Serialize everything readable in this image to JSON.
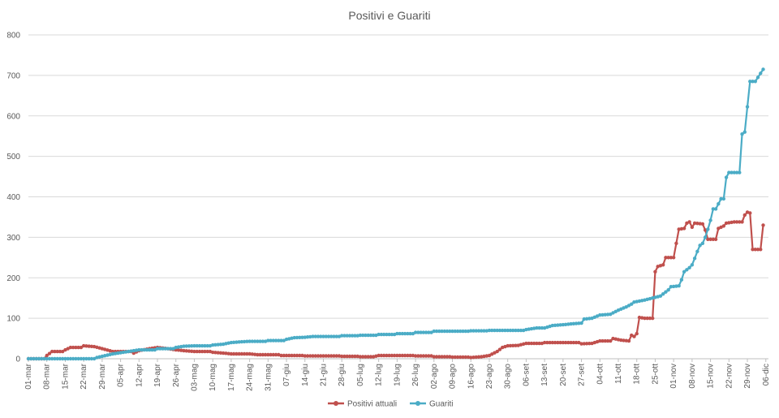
{
  "chart_data": {
    "type": "line",
    "title": "Positivi e Guariti",
    "xlabel": "",
    "ylabel": "",
    "ylim": [
      0,
      800
    ],
    "yticks": [
      0,
      100,
      200,
      300,
      400,
      500,
      600,
      700,
      800
    ],
    "grid": true,
    "legend_position": "bottom",
    "x_start": "01-mar",
    "x_end": "07-dic",
    "xtick_labels": [
      "01-mar",
      "08-mar",
      "15-mar",
      "22-mar",
      "29-mar",
      "05-apr",
      "12-apr",
      "19-apr",
      "26-apr",
      "03-mag",
      "10-mag",
      "17-mag",
      "24-mag",
      "31-mag",
      "07-giu",
      "14-giu",
      "21-giu",
      "28-giu",
      "05-lug",
      "12-lug",
      "19-lug",
      "26-lug",
      "02-ago",
      "09-ago",
      "16-ago",
      "23-ago",
      "30-ago",
      "06-set",
      "13-set",
      "20-set",
      "27-set",
      "04-ott",
      "11-ott",
      "18-ott",
      "25-ott",
      "01-nov",
      "08-nov",
      "15-nov",
      "22-nov",
      "29-nov",
      "06-dic"
    ],
    "series": [
      {
        "name": "Positivi attuali",
        "color": "#c0504d",
        "points": [
          [
            "01-mar",
            0
          ],
          [
            "08-mar",
            8
          ],
          [
            "10-mar",
            18
          ],
          [
            "15-mar",
            22
          ],
          [
            "17-mar",
            28
          ],
          [
            "22-mar",
            32
          ],
          [
            "26-mar",
            30
          ],
          [
            "29-mar",
            25
          ],
          [
            "02-apr",
            18
          ],
          [
            "05-apr",
            18
          ],
          [
            "10-apr",
            14
          ],
          [
            "12-apr",
            20
          ],
          [
            "16-apr",
            25
          ],
          [
            "19-apr",
            28
          ],
          [
            "23-apr",
            25
          ],
          [
            "26-apr",
            22
          ],
          [
            "29-apr",
            20
          ],
          [
            "03-mag",
            18
          ],
          [
            "10-mag",
            16
          ],
          [
            "14-mag",
            14
          ],
          [
            "17-mag",
            12
          ],
          [
            "24-mag",
            12
          ],
          [
            "27-mag",
            10
          ],
          [
            "31-mag",
            10
          ],
          [
            "05-giu",
            8
          ],
          [
            "07-giu",
            8
          ],
          [
            "14-giu",
            7
          ],
          [
            "21-giu",
            7
          ],
          [
            "28-giu",
            6
          ],
          [
            "05-lug",
            5
          ],
          [
            "10-lug",
            5
          ],
          [
            "12-lug",
            8
          ],
          [
            "19-lug",
            8
          ],
          [
            "26-lug",
            7
          ],
          [
            "02-ago",
            5
          ],
          [
            "09-ago",
            4
          ],
          [
            "16-ago",
            3
          ],
          [
            "20-ago",
            5
          ],
          [
            "23-ago",
            8
          ],
          [
            "26-ago",
            18
          ],
          [
            "28-ago",
            28
          ],
          [
            "30-ago",
            32
          ],
          [
            "03-set",
            33
          ],
          [
            "06-set",
            38
          ],
          [
            "13-set",
            40
          ],
          [
            "20-set",
            40
          ],
          [
            "27-set",
            37
          ],
          [
            "01-ott",
            38
          ],
          [
            "04-ott",
            44
          ],
          [
            "08-ott",
            44
          ],
          [
            "09-ott",
            50
          ],
          [
            "12-ott",
            46
          ],
          [
            "15-ott",
            44
          ],
          [
            "16-ott",
            58
          ],
          [
            "17-ott",
            55
          ],
          [
            "18-ott",
            62
          ],
          [
            "19-ott",
            102
          ],
          [
            "21-ott",
            100
          ],
          [
            "24-ott",
            100
          ],
          [
            "25-ott",
            215
          ],
          [
            "26-ott",
            228
          ],
          [
            "28-ott",
            232
          ],
          [
            "29-ott",
            250
          ],
          [
            "01-nov",
            250
          ],
          [
            "02-nov",
            285
          ],
          [
            "03-nov",
            320
          ],
          [
            "05-nov",
            322
          ],
          [
            "06-nov",
            335
          ],
          [
            "07-nov",
            338
          ],
          [
            "08-nov",
            325
          ],
          [
            "09-nov",
            335
          ],
          [
            "12-nov",
            333
          ],
          [
            "13-nov",
            318
          ],
          [
            "14-nov",
            295
          ],
          [
            "17-nov",
            295
          ],
          [
            "18-nov",
            322
          ],
          [
            "20-nov",
            328
          ],
          [
            "21-nov",
            335
          ],
          [
            "24-nov",
            338
          ],
          [
            "27-nov",
            338
          ],
          [
            "28-nov",
            355
          ],
          [
            "29-nov",
            362
          ],
          [
            "30-nov",
            360
          ],
          [
            "01-dic",
            270
          ],
          [
            "04-dic",
            270
          ],
          [
            "05-dic",
            330
          ]
        ]
      },
      {
        "name": "Guariti",
        "color": "#4bacc6",
        "points": [
          [
            "01-mar",
            0
          ],
          [
            "15-mar",
            0
          ],
          [
            "26-mar",
            0
          ],
          [
            "27-mar",
            3
          ],
          [
            "29-mar",
            6
          ],
          [
            "02-apr",
            12
          ],
          [
            "05-apr",
            15
          ],
          [
            "08-apr",
            18
          ],
          [
            "12-apr",
            22
          ],
          [
            "19-apr",
            25
          ],
          [
            "26-apr",
            28
          ],
          [
            "29-apr",
            31
          ],
          [
            "03-mag",
            32
          ],
          [
            "10-mag",
            34
          ],
          [
            "14-mag",
            36
          ],
          [
            "17-mag",
            40
          ],
          [
            "21-mag",
            42
          ],
          [
            "24-mag",
            43
          ],
          [
            "31-mag",
            45
          ],
          [
            "07-giu",
            48
          ],
          [
            "10-giu",
            52
          ],
          [
            "14-giu",
            53
          ],
          [
            "17-giu",
            55
          ],
          [
            "21-giu",
            55
          ],
          [
            "28-giu",
            57
          ],
          [
            "05-lug",
            58
          ],
          [
            "12-lug",
            60
          ],
          [
            "19-lug",
            62
          ],
          [
            "26-lug",
            65
          ],
          [
            "02-ago",
            68
          ],
          [
            "09-ago",
            68
          ],
          [
            "16-ago",
            69
          ],
          [
            "23-ago",
            70
          ],
          [
            "30-ago",
            70
          ],
          [
            "06-set",
            72
          ],
          [
            "10-set",
            76
          ],
          [
            "13-set",
            76
          ],
          [
            "16-set",
            82
          ],
          [
            "20-set",
            84
          ],
          [
            "23-set",
            86
          ],
          [
            "27-set",
            88
          ],
          [
            "28-set",
            98
          ],
          [
            "01-ott",
            100
          ],
          [
            "04-ott",
            108
          ],
          [
            "08-ott",
            110
          ],
          [
            "11-ott",
            120
          ],
          [
            "14-ott",
            128
          ],
          [
            "16-ott",
            135
          ],
          [
            "17-ott",
            140
          ],
          [
            "21-ott",
            145
          ],
          [
            "24-ott",
            150
          ],
          [
            "27-ott",
            155
          ],
          [
            "28-ott",
            160
          ],
          [
            "30-ott",
            170
          ],
          [
            "31-ott",
            178
          ],
          [
            "03-nov",
            180
          ],
          [
            "04-nov",
            195
          ],
          [
            "05-nov",
            215
          ],
          [
            "07-nov",
            225
          ],
          [
            "08-nov",
            232
          ],
          [
            "09-nov",
            248
          ],
          [
            "10-nov",
            265
          ],
          [
            "11-nov",
            280
          ],
          [
            "12-nov",
            285
          ],
          [
            "13-nov",
            300
          ],
          [
            "14-nov",
            320
          ],
          [
            "15-nov",
            342
          ],
          [
            "16-nov",
            370
          ],
          [
            "17-nov",
            370
          ],
          [
            "19-nov",
            395
          ],
          [
            "20-nov",
            395
          ],
          [
            "21-nov",
            448
          ],
          [
            "22-nov",
            460
          ],
          [
            "26-nov",
            460
          ],
          [
            "27-nov",
            555
          ],
          [
            "28-nov",
            560
          ],
          [
            "30-nov",
            685
          ],
          [
            "02-dic",
            685
          ],
          [
            "05-dic",
            715
          ]
        ]
      }
    ]
  }
}
